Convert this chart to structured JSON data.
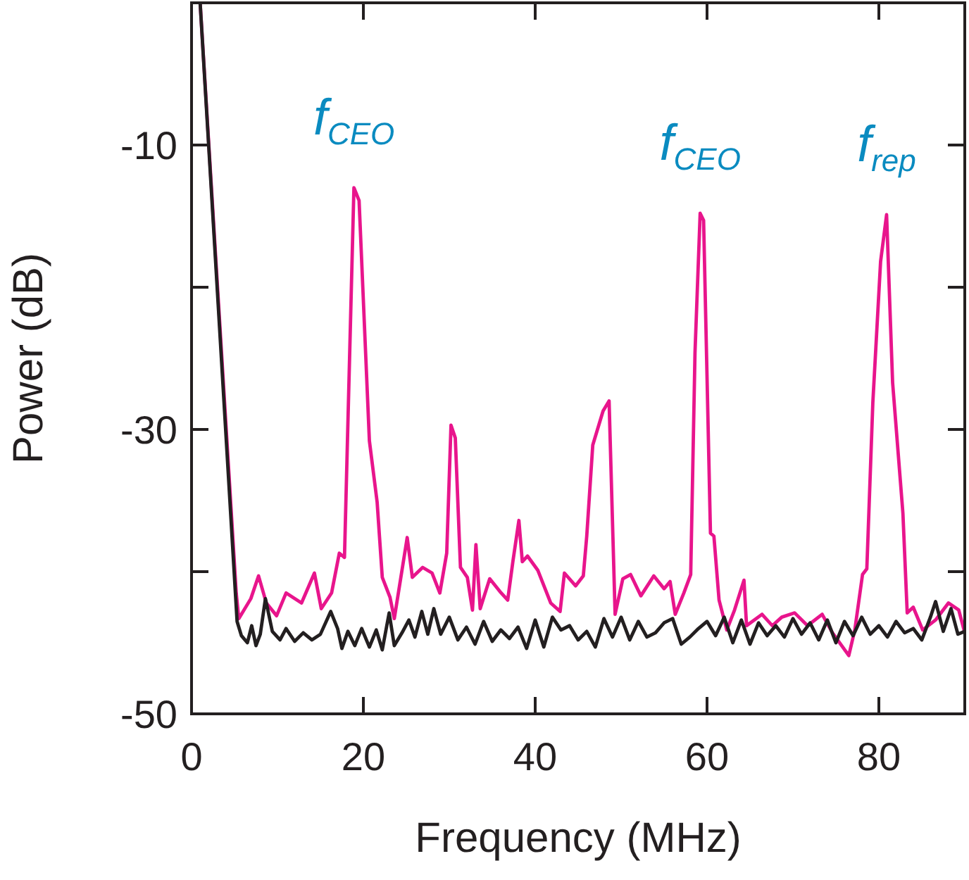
{
  "chart_data": {
    "type": "line",
    "xlabel": "Frequency (MHz)",
    "ylabel": "Power (dB)",
    "xlim": [
      0,
      90
    ],
    "xticks": [
      0,
      20,
      40,
      60,
      80
    ],
    "ylim": [
      -50,
      0
    ],
    "yticks": [
      -50,
      {
        "value": -40,
        "label": null
      },
      -30,
      {
        "value": -20,
        "label": null
      },
      -10
    ],
    "grid": false,
    "line_style": "solid",
    "marker": "none",
    "annotations": [
      {
        "text": "f$_{CEO}$",
        "x": 18.9,
        "y": -13
      },
      {
        "text": "f$_{CEO}$",
        "x": 59.2,
        "y": -14.8
      },
      {
        "text": "f$_{rep}$",
        "x": 80.9,
        "y": -14.9
      }
    ],
    "series": [
      {
        "color": "#e8158c",
        "x": [
          1,
          5.2,
          5.5,
          6.9,
          7.8,
          8.7,
          9.9,
          11,
          12.8,
          14.3,
          15.1,
          16.3,
          17.2,
          17.8,
          18.9,
          19.5,
          20.7,
          21.6,
          22.2,
          23.1,
          23.6,
          25.1,
          25.7,
          26.9,
          28,
          28.9,
          29.7,
          30.2,
          30.7,
          31.3,
          32.1,
          32.7,
          33.1,
          33.6,
          34.7,
          35.9,
          36.8,
          37.4,
          38.1,
          38.5,
          39.1,
          40.3,
          41.8,
          42.9,
          43.4,
          44.7,
          45.6,
          46,
          46.7,
          47.2,
          47.9,
          48.6,
          49.3,
          50.2,
          51.1,
          52.3,
          53.8,
          55,
          55.7,
          56.3,
          57.3,
          58.1,
          58.6,
          59.2,
          59.6,
          60.4,
          60.8,
          61.4,
          62.3,
          63.2,
          64.3,
          64.6,
          66.4,
          67.6,
          68.7,
          70.2,
          71.7,
          73.4,
          74.6,
          76.5,
          77.2,
          78.1,
          78.6,
          79.3,
          80.2,
          80.9,
          81.6,
          82.8,
          83.3,
          84,
          85.1,
          86.6,
          88.1,
          89.3,
          90
        ],
        "values": [
          0,
          -41.5,
          -43.3,
          -41.9,
          -40.3,
          -42.2,
          -43.1,
          -41.5,
          -42.2,
          -40.1,
          -42.6,
          -41.5,
          -38.7,
          -39,
          -13,
          -13.9,
          -30.8,
          -35.1,
          -40.4,
          -41.8,
          -43.3,
          -37.6,
          -40.4,
          -39.7,
          -40.1,
          -41.5,
          -38.7,
          -29.7,
          -30.6,
          -39.7,
          -40.4,
          -42.7,
          -38.1,
          -42.6,
          -40.5,
          -41.4,
          -42,
          -39.3,
          -36.4,
          -39.3,
          -38.9,
          -39.9,
          -42.2,
          -42.8,
          -40.1,
          -41,
          -40.3,
          -37.5,
          -31.1,
          -30.1,
          -28.7,
          -28,
          -43,
          -40.5,
          -40.2,
          -41.7,
          -40.3,
          -41.2,
          -40.7,
          -43,
          -41.5,
          -40.2,
          -24.6,
          -14.8,
          -15.3,
          -37.3,
          -37.5,
          -42,
          -44.1,
          -42.7,
          -40.6,
          -43.8,
          -43,
          -43.8,
          -43.2,
          -42.9,
          -43.8,
          -43,
          -44.3,
          -45.9,
          -44.1,
          -40.2,
          -39.8,
          -28.1,
          -18.2,
          -14.9,
          -26.7,
          -35.9,
          -42.9,
          -42.5,
          -44.1,
          -43.4,
          -42.2,
          -42.7,
          -44.3
        ]
      },
      {
        "color": "#231f20",
        "x": [
          1,
          5.3,
          5.8,
          6.5,
          7,
          7.5,
          8,
          8.6,
          9.4,
          10.3,
          11,
          12,
          13,
          14,
          15,
          16.2,
          17,
          17.5,
          18.2,
          19,
          19.8,
          20.7,
          21.5,
          22.2,
          23,
          23.6,
          24.5,
          25.3,
          26,
          26.8,
          27.5,
          28.2,
          29,
          30,
          31,
          32,
          33,
          34,
          35,
          36,
          37,
          38,
          39,
          40,
          41,
          42,
          43,
          44,
          45,
          46,
          47,
          48,
          49,
          50,
          51,
          52,
          53,
          54,
          55,
          56,
          57,
          58,
          59,
          60,
          61,
          62,
          63,
          64,
          65,
          66,
          67,
          68,
          69,
          70,
          71,
          72,
          73,
          74,
          75,
          76,
          77,
          78,
          79,
          80,
          81,
          82,
          83,
          84,
          85,
          86,
          86.6,
          87.5,
          88.4,
          89.2,
          90
        ],
        "values": [
          0,
          -43.5,
          -44.5,
          -45,
          -43.8,
          -45.2,
          -44.4,
          -41.9,
          -44.2,
          -44.8,
          -44,
          -44.9,
          -44.3,
          -44.8,
          -44.4,
          -42.8,
          -44,
          -45.4,
          -44.2,
          -45.2,
          -44,
          -45.3,
          -44.1,
          -45.5,
          -42.9,
          -45.2,
          -44.3,
          -43.4,
          -44.6,
          -42.8,
          -44.4,
          -42.6,
          -44.4,
          -43.2,
          -44.8,
          -43.9,
          -45.1,
          -43.5,
          -44.9,
          -44.1,
          -44.7,
          -43.9,
          -45.4,
          -43.4,
          -45.3,
          -43.2,
          -44.1,
          -43.8,
          -44.8,
          -44.2,
          -45.3,
          -43.3,
          -44.6,
          -43.2,
          -44.8,
          -43.5,
          -44.6,
          -44.3,
          -43.6,
          -43.3,
          -45.1,
          -44.6,
          -44,
          -43.5,
          -44.5,
          -43.2,
          -45,
          -43.4,
          -45.1,
          -43.6,
          -44.5,
          -43.8,
          -44.6,
          -43.3,
          -44.4,
          -43.6,
          -44.8,
          -43.4,
          -45,
          -43.5,
          -44.5,
          -43.2,
          -44.4,
          -43.8,
          -44.6,
          -43.5,
          -44.3,
          -44,
          -44.8,
          -43.2,
          -42.1,
          -44.2,
          -42.6,
          -44.4,
          -44.2
        ]
      }
    ]
  }
}
